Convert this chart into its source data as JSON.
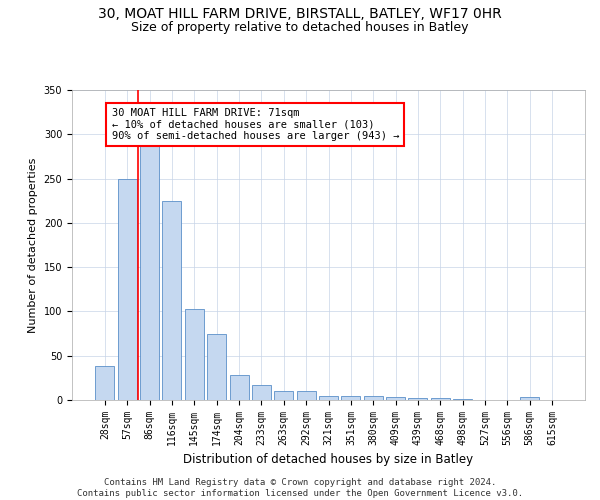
{
  "title1": "30, MOAT HILL FARM DRIVE, BIRSTALL, BATLEY, WF17 0HR",
  "title2": "Size of property relative to detached houses in Batley",
  "xlabel": "Distribution of detached houses by size in Batley",
  "ylabel": "Number of detached properties",
  "bar_labels": [
    "28sqm",
    "57sqm",
    "86sqm",
    "116sqm",
    "145sqm",
    "174sqm",
    "204sqm",
    "233sqm",
    "263sqm",
    "292sqm",
    "321sqm",
    "351sqm",
    "380sqm",
    "409sqm",
    "439sqm",
    "468sqm",
    "498sqm",
    "527sqm",
    "556sqm",
    "586sqm",
    "615sqm"
  ],
  "bar_values": [
    38,
    250,
    290,
    225,
    103,
    75,
    28,
    17,
    10,
    10,
    5,
    5,
    4,
    3,
    2,
    2,
    1,
    0,
    0,
    3,
    0
  ],
  "bar_color": "#c5d8f0",
  "bar_edge_color": "#5b8fc9",
  "red_line_x": 1.5,
  "annotation_text": "30 MOAT HILL FARM DRIVE: 71sqm\n← 10% of detached houses are smaller (103)\n90% of semi-detached houses are larger (943) →",
  "annotation_box_color": "white",
  "annotation_box_edge": "red",
  "ylim": [
    0,
    350
  ],
  "yticks": [
    0,
    50,
    100,
    150,
    200,
    250,
    300,
    350
  ],
  "footer_line1": "Contains HM Land Registry data © Crown copyright and database right 2024.",
  "footer_line2": "Contains public sector information licensed under the Open Government Licence v3.0.",
  "title1_fontsize": 10,
  "title2_fontsize": 9,
  "xlabel_fontsize": 8.5,
  "ylabel_fontsize": 8,
  "tick_fontsize": 7,
  "annot_fontsize": 7.5,
  "footer_fontsize": 6.5
}
